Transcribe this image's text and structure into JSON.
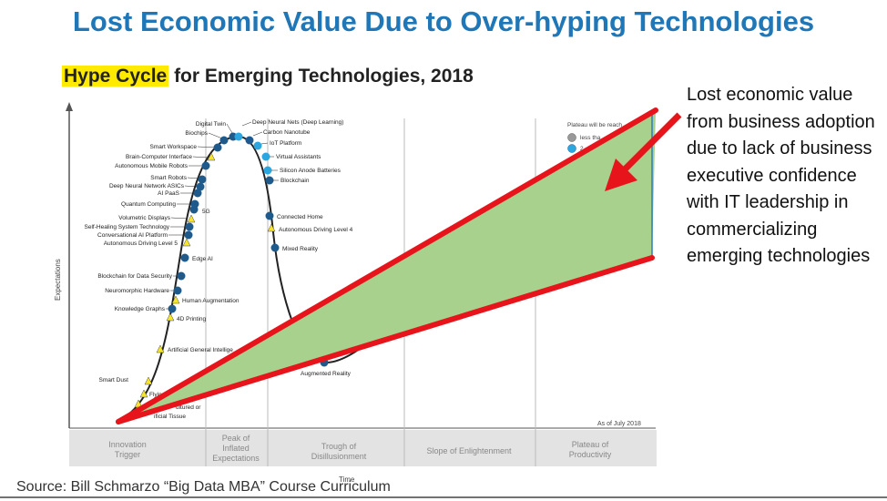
{
  "slide": {
    "title": "Lost Economic Value Due to Over-hyping Technologies",
    "subtitle_highlight": "Hype Cycle",
    "subtitle_rest": " for Emerging Technologies, 2018",
    "callout": "Lost economic value from business adoption due to lack of business executive confidence with IT leadership in commercializing emerging technologies",
    "source": "Source: Bill Schmarzo “Big Data MBA” Course Curriculum"
  },
  "chart": {
    "y_axis_label": "Expectations",
    "x_axis_label": "Time",
    "as_of": "As of July 2018",
    "legend_title": "Plateau will be reach",
    "legend_items": [
      "less tha",
      "2"
    ],
    "phases": [
      "Innovation Trigger",
      "Peak of Inflated Expectations",
      "Trough of Disillusionment",
      "Slope of Enlightenment",
      "Plateau of Productivity"
    ],
    "technologies": [
      {
        "label": "Digital Twin",
        "marker": "circle-dark"
      },
      {
        "label": "Deep Neural Nets (Deep Learning)",
        "marker": "circle-light"
      },
      {
        "label": "Biochips",
        "marker": "circle-dark"
      },
      {
        "label": "Carbon Nanotube",
        "marker": "circle-dark"
      },
      {
        "label": "IoT Platform",
        "marker": "circle-light"
      },
      {
        "label": "Smart Workspace",
        "marker": "circle-dark"
      },
      {
        "label": "Brain-Computer Interface",
        "marker": "triangle"
      },
      {
        "label": "Virtual Assistants",
        "marker": "circle-light"
      },
      {
        "label": "Autonomous Mobile Robots",
        "marker": "circle-dark"
      },
      {
        "label": "Silicon Anode Batteries",
        "marker": "circle-light"
      },
      {
        "label": "Smart Robots",
        "marker": "circle-dark"
      },
      {
        "label": "Blockchain",
        "marker": "circle-dark"
      },
      {
        "label": "Deep Neural Network ASICs",
        "marker": "circle-dark"
      },
      {
        "label": "AI PaaS",
        "marker": "circle-dark"
      },
      {
        "label": "Quantum Computing",
        "marker": "circle-dark"
      },
      {
        "label": "5G",
        "marker": "circle-dark"
      },
      {
        "label": "Volumetric Displays",
        "marker": "triangle"
      },
      {
        "label": "Connected Home",
        "marker": "circle-dark"
      },
      {
        "label": "Self-Healing System Technology",
        "marker": "circle-dark"
      },
      {
        "label": "Autonomous Driving Level 4",
        "marker": "triangle"
      },
      {
        "label": "Conversational AI Platform",
        "marker": "circle-dark"
      },
      {
        "label": "Autonomous Driving Level 5",
        "marker": "triangle"
      },
      {
        "label": "Mixed Reality",
        "marker": "circle-dark"
      },
      {
        "label": "Edge AI",
        "marker": "circle-dark"
      },
      {
        "label": "Blockchain for Data Security",
        "marker": "circle-dark"
      },
      {
        "label": "Neuromorphic Hardware",
        "marker": "circle-dark"
      },
      {
        "label": "Human Augmentation",
        "marker": "triangle"
      },
      {
        "label": "Knowledge Graphs",
        "marker": "circle-dark"
      },
      {
        "label": "4D Printing",
        "marker": "triangle"
      },
      {
        "label": "Artificial General Intellige",
        "marker": "triangle"
      },
      {
        "label": "Augmented Reality",
        "marker": "circle-dark"
      },
      {
        "label": "Smart Dust",
        "marker": "triangle"
      },
      {
        "label": "Flyin",
        "marker": "triangle"
      },
      {
        "label": "ultured or",
        "marker": "triangle"
      },
      {
        "label": "ificial Tissue",
        "marker": "triangle"
      }
    ]
  },
  "colors": {
    "title": "#1f77b8",
    "highlight": "#ffea00",
    "wedge_fill": "#a8d18d",
    "wedge_line": "#e8141c",
    "marker_dark": "#1e5b8c",
    "marker_light": "#2aa6e0",
    "marker_triangle": "#f5e52e"
  }
}
